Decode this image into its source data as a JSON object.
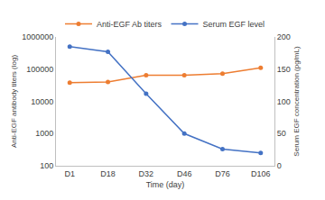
{
  "chart_data": {
    "type": "line",
    "categories": [
      "D1",
      "D18",
      "D32",
      "D46",
      "D76",
      "D106"
    ],
    "x_label": "Time (day)",
    "y_label": "Anti-EGF antibody titers (log)",
    "y2_label": "Serum EGF concentration (pg/mL)",
    "log": "y",
    "ylim": [
      100,
      1000000
    ],
    "yticks": [
      100,
      1000,
      10000,
      100000,
      1000000
    ],
    "y2lim": [
      0,
      200
    ],
    "y2ticks": [
      0,
      50,
      100,
      150,
      200
    ],
    "grid": false,
    "legend": "top",
    "series": [
      {
        "name": "Anti-EGF Ab titers",
        "color": "#ed7d31",
        "marker": "circle",
        "axis": "y",
        "values": [
          38000,
          40000,
          65000,
          65000,
          72000,
          110000
        ]
      },
      {
        "name": "Serum EGF level",
        "color": "#4472c4",
        "marker": "circle",
        "axis": "y2",
        "values": [
          185,
          177,
          112,
          50,
          26,
          20
        ]
      }
    ]
  }
}
